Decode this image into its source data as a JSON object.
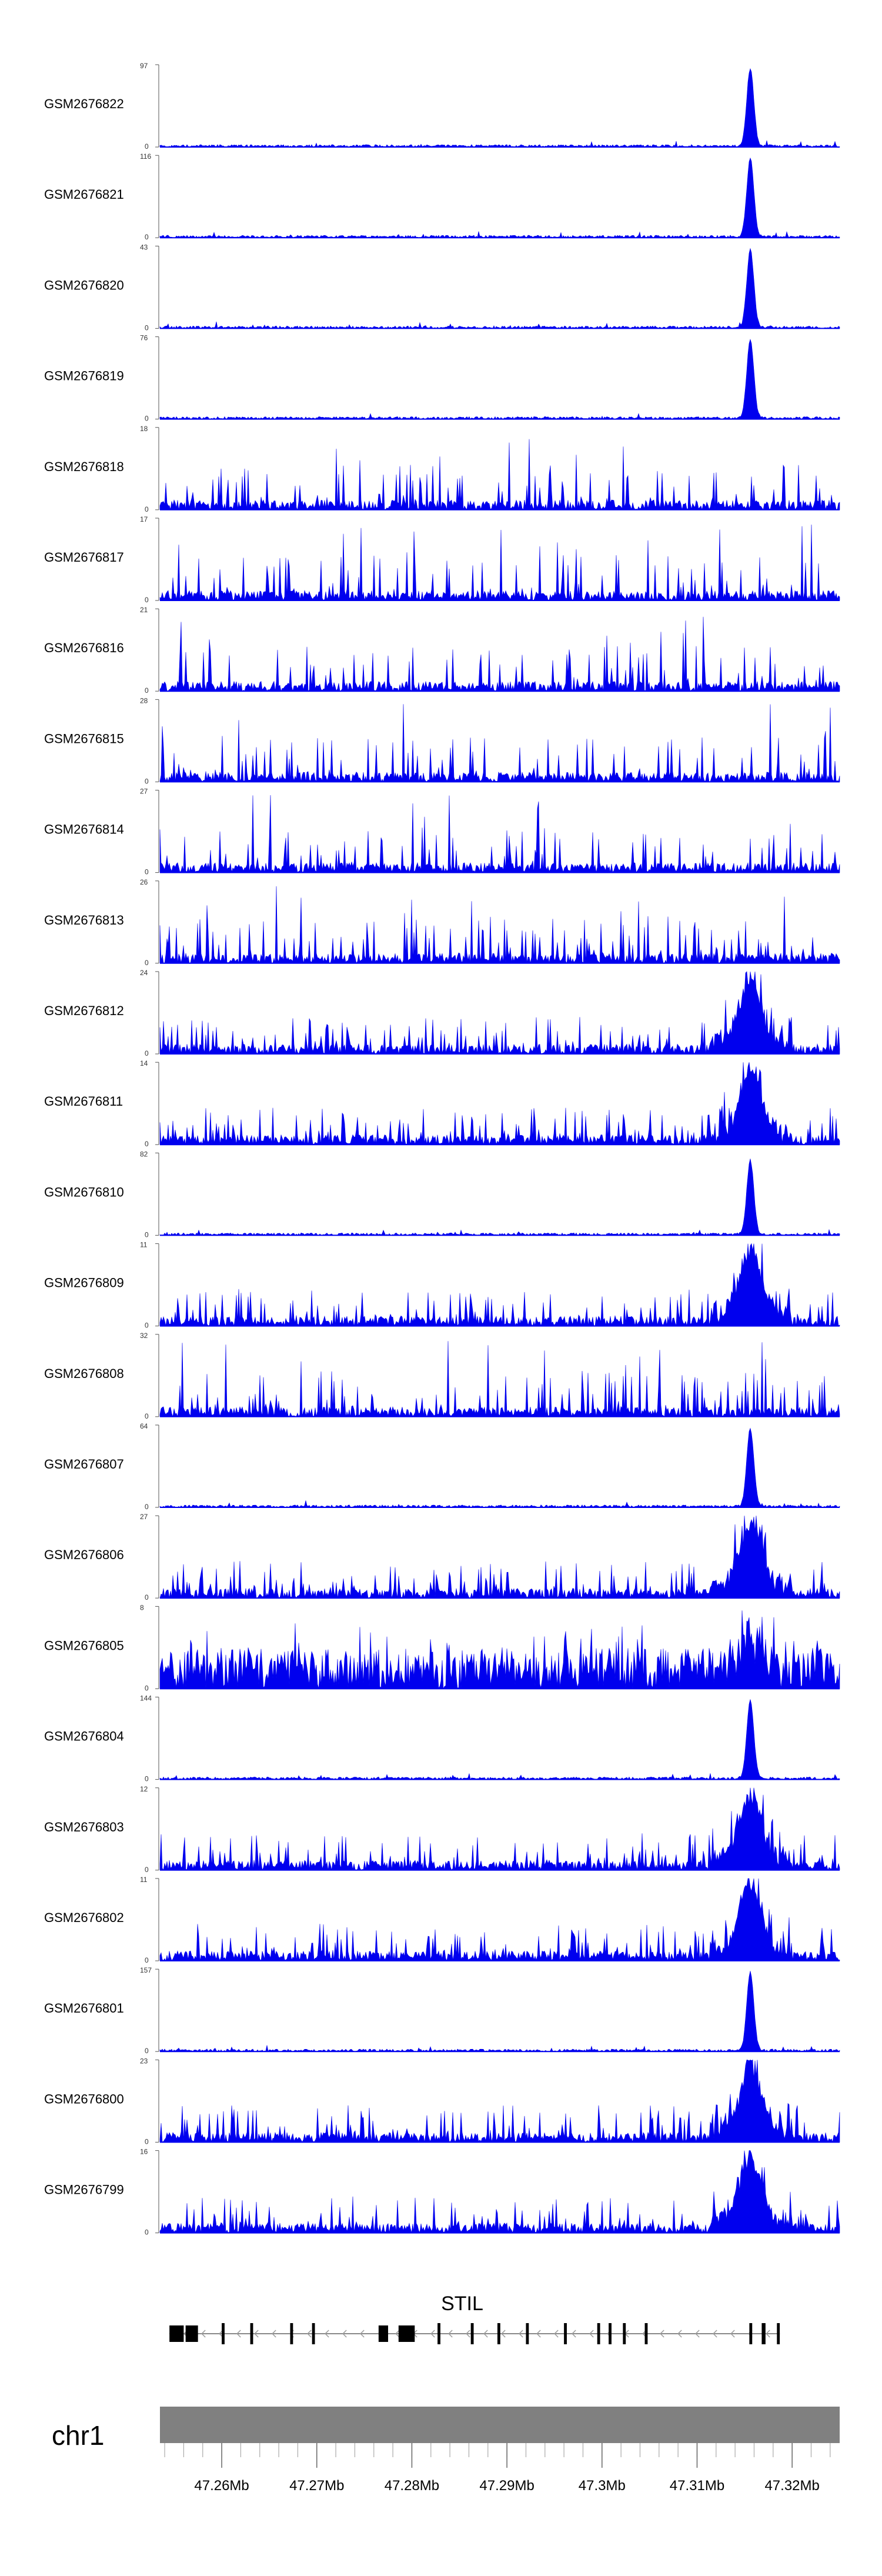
{
  "chart_data": {
    "type": "area",
    "x_unit": "Mb",
    "xlim": [
      47.2535,
      47.325
    ],
    "tracks": [
      {
        "name": "GSM2676822",
        "ymax": "97",
        "ymin": "0",
        "pattern": "peak",
        "peak_rel": 0.95
      },
      {
        "name": "GSM2676821",
        "ymax": "116",
        "ymin": "0",
        "pattern": "peak",
        "peak_rel": 0.95
      },
      {
        "name": "GSM2676820",
        "ymax": "43",
        "ymin": "0",
        "pattern": "peak",
        "peak_rel": 0.95
      },
      {
        "name": "GSM2676819",
        "ymax": "76",
        "ymin": "0",
        "pattern": "peak",
        "peak_rel": 0.95
      },
      {
        "name": "GSM2676818",
        "ymax": "18",
        "ymin": "0",
        "pattern": "noisy",
        "peak_rel": 0.5
      },
      {
        "name": "GSM2676817",
        "ymax": "17",
        "ymin": "0",
        "pattern": "noisy",
        "peak_rel": 0.5
      },
      {
        "name": "GSM2676816",
        "ymax": "21",
        "ymin": "0",
        "pattern": "noisy",
        "peak_rel": 0.6
      },
      {
        "name": "GSM2676815",
        "ymax": "28",
        "ymin": "0",
        "pattern": "noisy",
        "peak_rel": 0.4
      },
      {
        "name": "GSM2676814",
        "ymax": "27",
        "ymin": "0",
        "pattern": "noisy",
        "peak_rel": 0.35
      },
      {
        "name": "GSM2676813",
        "ymax": "26",
        "ymin": "0",
        "pattern": "noisy",
        "peak_rel": 0.55
      },
      {
        "name": "GSM2676812",
        "ymax": "24",
        "ymin": "0",
        "pattern": "mixed",
        "peak_rel": 0.9
      },
      {
        "name": "GSM2676811",
        "ymax": "14",
        "ymin": "0",
        "pattern": "mixed",
        "peak_rel": 0.9
      },
      {
        "name": "GSM2676810",
        "ymax": "82",
        "ymin": "0",
        "pattern": "peak",
        "peak_rel": 0.9
      },
      {
        "name": "GSM2676809",
        "ymax": "11",
        "ymin": "0",
        "pattern": "mixed",
        "peak_rel": 0.9
      },
      {
        "name": "GSM2676808",
        "ymax": "32",
        "ymin": "0",
        "pattern": "noisy",
        "peak_rel": 0.6
      },
      {
        "name": "GSM2676807",
        "ymax": "64",
        "ymin": "0",
        "pattern": "peak",
        "peak_rel": 0.95
      },
      {
        "name": "GSM2676806",
        "ymax": "27",
        "ymin": "0",
        "pattern": "mixed",
        "peak_rel": 0.9
      },
      {
        "name": "GSM2676805",
        "ymax": "8",
        "ymin": "0",
        "pattern": "dense",
        "peak_rel": 0.9
      },
      {
        "name": "GSM2676804",
        "ymax": "144",
        "ymin": "0",
        "pattern": "peak",
        "peak_rel": 0.95
      },
      {
        "name": "GSM2676803",
        "ymax": "12",
        "ymin": "0",
        "pattern": "mixed",
        "peak_rel": 0.9
      },
      {
        "name": "GSM2676802",
        "ymax": "11",
        "ymin": "0",
        "pattern": "mixed",
        "peak_rel": 0.9
      },
      {
        "name": "GSM2676801",
        "ymax": "157",
        "ymin": "0",
        "pattern": "peak",
        "peak_rel": 0.95
      },
      {
        "name": "GSM2676800",
        "ymax": "23",
        "ymin": "0",
        "pattern": "mixed",
        "peak_rel": 0.9
      },
      {
        "name": "GSM2676799",
        "ymax": "16",
        "ymin": "0",
        "pattern": "mixed",
        "peak_rel": 0.9
      }
    ],
    "peak_position": 47.3156,
    "gene": {
      "name": "STIL",
      "strand": "-",
      "start": 47.2545,
      "end": 47.3187,
      "exons": [
        [
          47.2545,
          47.256
        ],
        [
          47.2562,
          47.2575
        ],
        [
          47.26,
          47.2603
        ],
        [
          47.263,
          47.2633
        ],
        [
          47.2672,
          47.2675
        ],
        [
          47.2695,
          47.2698
        ],
        [
          47.2765,
          47.2775
        ],
        [
          47.2786,
          47.2803
        ],
        [
          47.2827,
          47.283
        ],
        [
          47.2862,
          47.2865
        ],
        [
          47.289,
          47.2893
        ],
        [
          47.292,
          47.2923
        ],
        [
          47.296,
          47.2963
        ],
        [
          47.2995,
          47.2998
        ],
        [
          47.3007,
          47.301
        ],
        [
          47.3022,
          47.3025
        ],
        [
          47.3045,
          47.3048
        ],
        [
          47.3155,
          47.3158
        ],
        [
          47.3168,
          47.3172
        ],
        [
          47.3184,
          47.3187
        ]
      ]
    },
    "chromosome": "chr1",
    "ticks": [
      47.26,
      47.27,
      47.28,
      47.29,
      47.3,
      47.31,
      47.32
    ],
    "tick_labels": [
      "47.26Mb",
      "47.27Mb",
      "47.28Mb",
      "47.29Mb",
      "47.3Mb",
      "47.31Mb",
      "47.32Mb"
    ],
    "colors": {
      "signal": "#0000ee",
      "chromosome": "#808080",
      "gene": "#000000"
    }
  }
}
